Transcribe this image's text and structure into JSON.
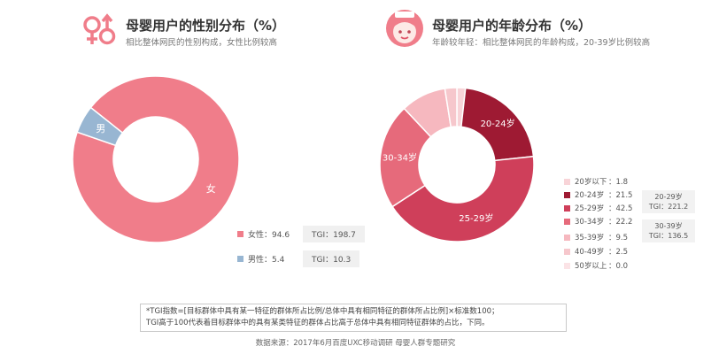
{
  "colors": {
    "pink": "#f07d8a",
    "blue": "#98b6d2",
    "age": [
      "#f8d4d8",
      "#9e1a33",
      "#cf3f5a",
      "#e66a7b",
      "#f6b8bf",
      "#f6c7cc",
      "#fbe3e6"
    ]
  },
  "left_panel": {
    "icon": "gender-icon",
    "title": "母婴用户的性别分布（%）",
    "subtitle": "相比整体网民的性别构成，女性比例较高"
  },
  "right_panel": {
    "icon": "woman-face-icon",
    "title": "母婴用户的年龄分布（%）",
    "subtitle": "年龄较年轻：相比整体网民的年龄构成，20-39岁比例较高"
  },
  "chart_data": [
    {
      "type": "pie",
      "categories": [
        "女性",
        "男性"
      ],
      "values": [
        94.6,
        5.4
      ],
      "slice_labels": [
        "女",
        "男"
      ],
      "legend": [
        {
          "label": "女性：94.6",
          "tgi": "TGI：198.7"
        },
        {
          "label": "男性：5.4",
          "tgi": "TGI：10.3"
        }
      ]
    },
    {
      "type": "pie",
      "categories": [
        "20岁以下",
        "20-24岁",
        "25-29岁",
        "30-34岁",
        "35-39岁",
        "40-49岁",
        "50岁以上"
      ],
      "values": [
        1.8,
        21.5,
        42.5,
        22.2,
        9.5,
        2.5,
        0.0
      ],
      "slice_labels": [
        "",
        "20-24岁",
        "25-29岁",
        "30-34岁",
        "",
        "",
        ""
      ],
      "legend": [
        {
          "label": "20岁以下",
          "value": "：1.8"
        },
        {
          "label": "20-24岁",
          "value": "：21.5"
        },
        {
          "label": "25-29岁",
          "value": "：42.5"
        },
        {
          "label": "30-34岁",
          "value": "：22.2"
        },
        {
          "label": "35-39岁",
          "value": "：9.5"
        },
        {
          "label": "40-49岁",
          "value": "：2.5"
        },
        {
          "label": "50岁以上",
          "value": "：0.0"
        }
      ],
      "tgi_cards": [
        {
          "line1": "20-29岁",
          "line2": "TGI：221.2"
        },
        {
          "line1": "30-39岁",
          "line2": "TGI：136.5"
        }
      ]
    }
  ],
  "footnote": {
    "line1": "*TGI指数=[目标群体中具有某一特征的群体所占比例/总体中具有相同特征的群体所占比例]×标准数100；",
    "line2": "TGI高于100代表着目标群体中的具有某类特征的群体占比高于总体中具有相同特征群体的占比，下同。"
  },
  "source": "数据来源：2017年6月百度UXC移动调研 母婴人群专题研究"
}
